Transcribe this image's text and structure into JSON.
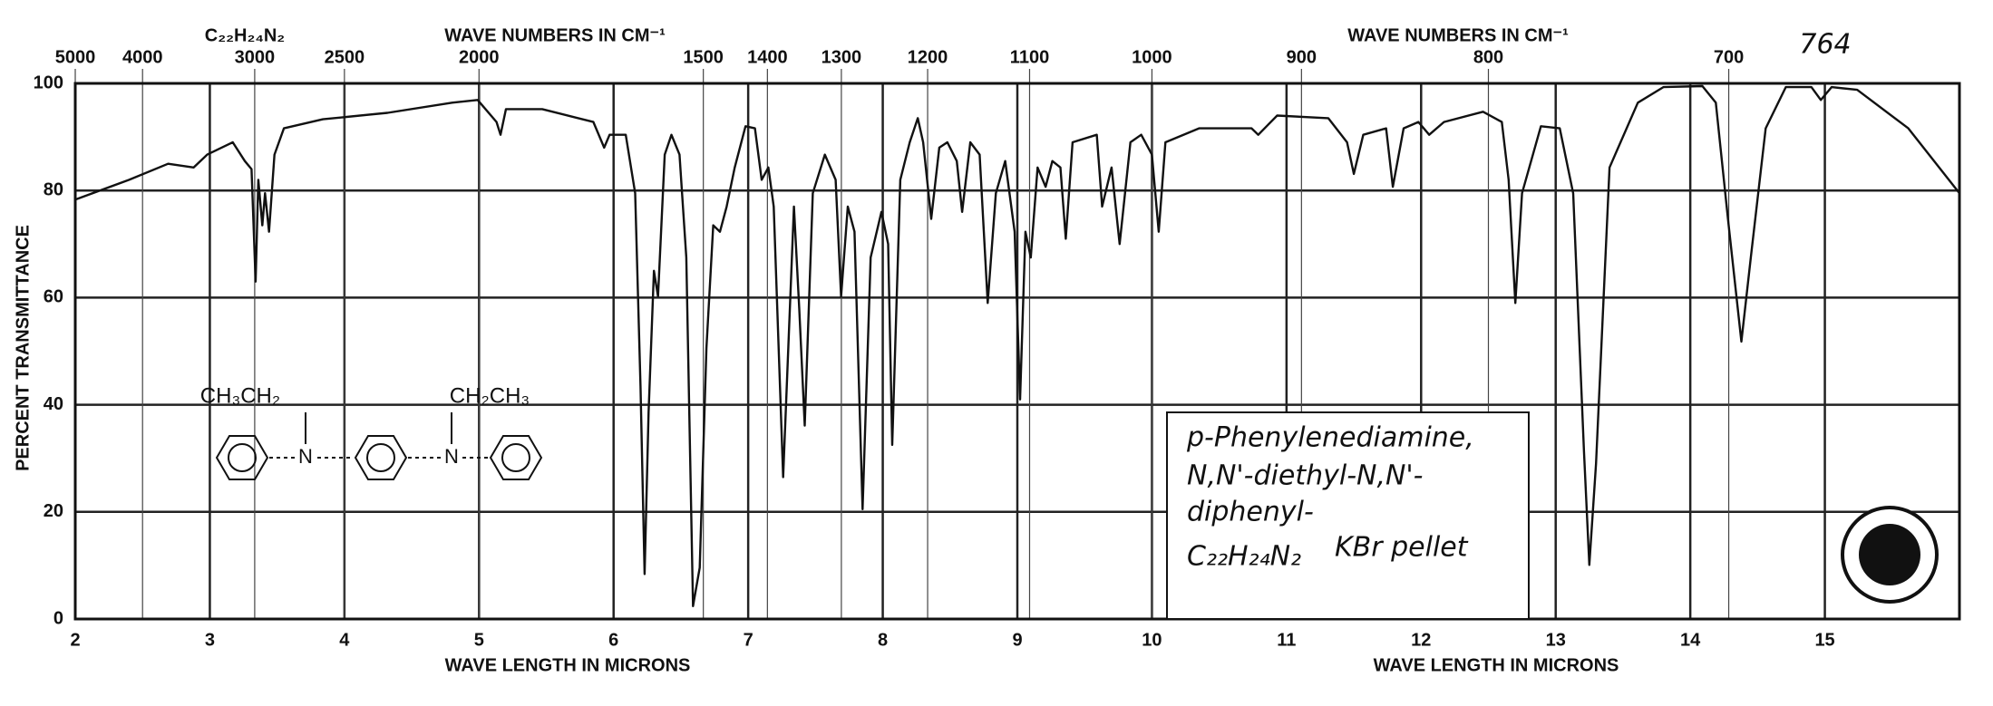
{
  "chart_data": {
    "type": "line",
    "formula_top": "C₂₂H₂₄N₂",
    "spectrum_number": "764",
    "top_axis_titles": [
      "WAVE NUMBERS IN CM⁻¹",
      "WAVE NUMBERS IN CM⁻¹"
    ],
    "bottom_axis_titles": [
      "WAVE LENGTH IN MICRONS",
      "WAVE LENGTH IN MICRONS"
    ],
    "y_label": "PERCENT TRANSMITTANCE",
    "color": "#111111",
    "grid": true,
    "xlim": [
      2,
      16
    ],
    "xticks": [
      2,
      3,
      4,
      5,
      6,
      7,
      8,
      9,
      10,
      11,
      12,
      13,
      14,
      15
    ],
    "x2_scale": "reciprocal",
    "x2ticks": [
      5000,
      4000,
      3000,
      2500,
      2000,
      1500,
      1400,
      1300,
      1200,
      1100,
      1000,
      900,
      800,
      700
    ],
    "ylim": [
      0,
      100
    ],
    "yticks": [
      0,
      20,
      40,
      60,
      80,
      100
    ],
    "x": [
      2.0,
      2.4,
      2.69,
      2.88,
      2.98,
      3.17,
      3.26,
      3.31,
      3.34,
      3.36,
      3.39,
      3.41,
      3.44,
      3.48,
      3.55,
      3.84,
      4.32,
      4.8,
      4.99,
      5.13,
      5.16,
      5.2,
      5.47,
      5.85,
      5.93,
      5.97,
      6.09,
      6.16,
      6.2,
      6.23,
      6.26,
      6.3,
      6.33,
      6.38,
      6.43,
      6.49,
      6.54,
      6.59,
      6.64,
      6.69,
      6.74,
      6.79,
      6.84,
      6.9,
      6.98,
      7.05,
      7.1,
      7.15,
      7.19,
      7.26,
      7.34,
      7.38,
      7.42,
      7.48,
      7.57,
      7.65,
      7.69,
      7.74,
      7.79,
      7.85,
      7.91,
      7.99,
      8.04,
      8.07,
      8.13,
      8.2,
      8.26,
      8.3,
      8.36,
      8.42,
      8.48,
      8.55,
      8.59,
      8.65,
      8.72,
      8.78,
      8.84,
      8.91,
      8.98,
      9.02,
      9.06,
      9.1,
      9.15,
      9.21,
      9.26,
      9.32,
      9.36,
      9.41,
      9.59,
      9.63,
      9.7,
      9.76,
      9.84,
      9.92,
      10.0,
      10.05,
      10.1,
      10.35,
      10.74,
      10.79,
      10.93,
      11.31,
      11.45,
      11.5,
      11.57,
      11.74,
      11.79,
      11.87,
      11.98,
      12.06,
      12.17,
      12.46,
      12.6,
      12.65,
      12.7,
      12.75,
      12.89,
      13.03,
      13.13,
      13.21,
      13.25,
      13.3,
      13.4,
      13.61,
      13.8,
      14.09,
      14.19,
      14.28,
      14.38,
      14.45,
      14.56,
      14.71,
      14.9,
      14.97,
      15.05,
      15.24,
      15.62,
      16.0
    ],
    "values": [
      78.3,
      82,
      85,
      84.3,
      86.7,
      89,
      85.5,
      84,
      63,
      82,
      73.5,
      79.5,
      72.3,
      86.7,
      91.6,
      93.3,
      94.5,
      96.4,
      96.9,
      92.8,
      90.4,
      95.2,
      95.2,
      92.8,
      88,
      90.4,
      90.4,
      79.5,
      43.4,
      8.4,
      38.6,
      65,
      60.2,
      86.7,
      90.4,
      86.7,
      67.5,
      2.4,
      9.6,
      50.6,
      73.5,
      72.3,
      77,
      84.3,
      92,
      91.6,
      82,
      84.3,
      77,
      26.5,
      77,
      57.8,
      36.1,
      79.5,
      86.7,
      82,
      60.2,
      77,
      72.3,
      20.5,
      67.5,
      76,
      70,
      32.5,
      82,
      89,
      93.5,
      89,
      74.7,
      88,
      89,
      85.5,
      76,
      89,
      86.7,
      59,
      79.5,
      85.5,
      72.3,
      41,
      72.3,
      67.5,
      84.3,
      80.7,
      85.5,
      84.3,
      71,
      89,
      90.4,
      77,
      84.3,
      70,
      89,
      90.4,
      86.7,
      72.3,
      89,
      91.6,
      91.6,
      90.4,
      94,
      93.5,
      89,
      83.1,
      90.4,
      91.6,
      80.7,
      91.6,
      92.8,
      90.4,
      92.8,
      94.7,
      92.8,
      82,
      59,
      79.5,
      92,
      91.6,
      79.5,
      31.3,
      10.1,
      29,
      84.3,
      96.4,
      99.3,
      99.5,
      96.4,
      74.7,
      51.8,
      67.5,
      91.6,
      99.3,
      99.3,
      96.9,
      99.3,
      98.8,
      91.6,
      79.5
    ],
    "structure": {
      "left_group": "CH₃CH₂",
      "right_group": "CH₂CH₃",
      "atoms": [
        "N",
        "N"
      ]
    },
    "annotation": {
      "lines": [
        "p-Phenylenediamine,",
        "N,N'-diethyl-N,N'-",
        "diphenyl-",
        "C₂₂H₂₄N₂"
      ],
      "note": "KBr pellet"
    }
  }
}
